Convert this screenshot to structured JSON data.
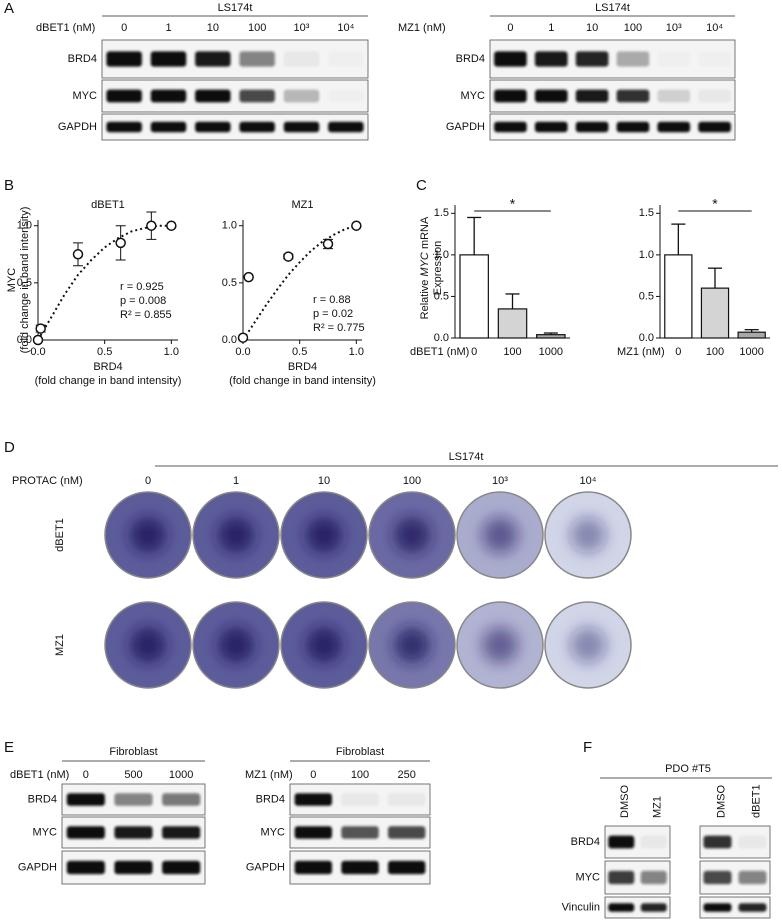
{
  "panel_labels": [
    "A",
    "B",
    "C",
    "D",
    "E",
    "F"
  ],
  "blots": [
    {
      "title": "LS174t",
      "conc_label": "dBET1 (nM)",
      "lanes": [
        "0",
        "1",
        "10",
        "100",
        "10³",
        "10⁴"
      ],
      "rows": [
        {
          "name": "BRD4",
          "bands": [
            1,
            1,
            0.95,
            0.5,
            0.05,
            0.02
          ]
        },
        {
          "name": "MYC",
          "bands": [
            1,
            1,
            1,
            0.75,
            0.25,
            0.02
          ]
        },
        {
          "name": "GAPDH",
          "bands": [
            1,
            1,
            1,
            1,
            1,
            1
          ]
        }
      ]
    },
    {
      "title": "LS174t",
      "conc_label": "MZ1 (nM)",
      "lanes": [
        "0",
        "1",
        "10",
        "100",
        "10³",
        "10⁴"
      ],
      "rows": [
        {
          "name": "BRD4",
          "bands": [
            1,
            0.95,
            0.9,
            0.3,
            0.02,
            0.02
          ]
        },
        {
          "name": "MYC",
          "bands": [
            1,
            1,
            0.95,
            0.85,
            0.15,
            0.05
          ]
        },
        {
          "name": "GAPDH",
          "bands": [
            1,
            1,
            1,
            1,
            1,
            1
          ]
        }
      ]
    },
    {
      "title": "Fibroblast",
      "conc_label": "dBET1 (nM)",
      "lanes": [
        "0",
        "500",
        "1000"
      ],
      "rows": [
        {
          "name": "BRD4",
          "bands": [
            1,
            0.5,
            0.55
          ]
        },
        {
          "name": "MYC",
          "bands": [
            1,
            0.95,
            0.95
          ]
        },
        {
          "name": "GAPDH",
          "bands": [
            1,
            1,
            1
          ]
        }
      ]
    },
    {
      "title": "Fibroblast",
      "conc_label": "MZ1 (nM)",
      "lanes": [
        "0",
        "100",
        "250"
      ],
      "rows": [
        {
          "name": "BRD4",
          "bands": [
            1,
            0.05,
            0.05
          ]
        },
        {
          "name": "MYC",
          "bands": [
            1,
            0.7,
            0.75
          ]
        },
        {
          "name": "GAPDH",
          "bands": [
            1,
            1,
            1
          ]
        }
      ]
    },
    {
      "title": "PDO #T5",
      "lanes": [
        "DMSO",
        "MZ1"
      ],
      "rows": [
        {
          "name": "BRD4",
          "bands": [
            1,
            0.05
          ]
        },
        {
          "name": "MYC",
          "bands": [
            0.8,
            0.5
          ]
        },
        {
          "name": "Vinculin",
          "bands": [
            1,
            0.9
          ]
        }
      ]
    },
    {
      "lanes": [
        "DMSO",
        "dBET1"
      ],
      "rows": [
        {
          "bands": [
            0.85,
            0.05
          ]
        },
        {
          "bands": [
            0.75,
            0.5
          ]
        },
        {
          "bands": [
            1,
            0.9
          ]
        }
      ]
    }
  ],
  "plates": {
    "title": "LS174t",
    "conc_label": "PROTAC (nM)",
    "lanes": [
      "0",
      "1",
      "10",
      "100",
      "10³",
      "10⁴"
    ],
    "rows": [
      {
        "name": "dBET1",
        "density": [
          1,
          1,
          1,
          0.9,
          0.4,
          0.1
        ]
      },
      {
        "name": "MZ1",
        "density": [
          1,
          1,
          1,
          0.8,
          0.35,
          0.1
        ]
      }
    ]
  },
  "chart_data": [
    {
      "type": "scatter",
      "title": "dBET1",
      "ylabel": [
        "MYC",
        "(fold change in band intensity)"
      ],
      "xlabel": [
        "BRD4",
        "(fold change in band intensity)"
      ],
      "x": [
        0,
        0.02,
        0.3,
        0.62,
        0.85,
        1.0
      ],
      "values": [
        0,
        0.1,
        0.75,
        0.85,
        1.0,
        1.0
      ],
      "errors": [
        0,
        0.03,
        0.1,
        0.15,
        0.12,
        0
      ],
      "fit": {
        "x": [
          0,
          0.1,
          0.2,
          0.3,
          0.4,
          0.5,
          0.6,
          0.7,
          0.8,
          0.9,
          1.0
        ],
        "y": [
          0,
          0.2,
          0.4,
          0.57,
          0.7,
          0.81,
          0.89,
          0.95,
          0.98,
          1.0,
          1.0
        ]
      },
      "annotations": [
        "r = 0.925",
        "p = 0.008",
        "R² = 0.855"
      ],
      "xlim": [
        0,
        1.05
      ],
      "ylim": [
        0,
        1.05
      ],
      "xticks": [
        {
          "value": 0,
          "label": "0.0"
        },
        {
          "value": 0.5,
          "label": "0.5"
        },
        {
          "value": 1,
          "label": "1.0"
        }
      ],
      "yticks": [
        {
          "value": 0,
          "label": "0.0"
        },
        {
          "value": 0.5,
          "label": "0.5"
        },
        {
          "value": 1,
          "label": "1.0"
        }
      ]
    },
    {
      "type": "scatter",
      "title": "MZ1",
      "xlabel": [
        "BRD4",
        "(fold change in band intensity)"
      ],
      "x": [
        0,
        0.05,
        0.4,
        0.75,
        1.0
      ],
      "values": [
        0.02,
        0.55,
        0.73,
        0.84,
        1.0
      ],
      "errors": [
        0,
        0,
        0.02,
        0.04,
        0
      ],
      "fit": {
        "x": [
          0,
          0.1,
          0.2,
          0.3,
          0.4,
          0.5,
          0.6,
          0.7,
          0.8,
          0.9,
          1.0
        ],
        "y": [
          0,
          0.15,
          0.3,
          0.44,
          0.57,
          0.68,
          0.78,
          0.86,
          0.92,
          0.97,
          1.0
        ]
      },
      "annotations": [
        "r = 0.88",
        "p = 0.02",
        "R² = 0.775"
      ],
      "xlim": [
        0,
        1.05
      ],
      "ylim": [
        0,
        1.05
      ],
      "xticks": [
        {
          "value": 0,
          "label": "0.0"
        },
        {
          "value": 0.5,
          "label": "0.5"
        },
        {
          "value": 1,
          "label": "1.0"
        }
      ],
      "yticks": [
        {
          "value": 0,
          "label": "0.0"
        },
        {
          "value": 0.5,
          "label": "0.5"
        },
        {
          "value": 1,
          "label": "1.0"
        }
      ]
    },
    {
      "type": "bar",
      "ylabel": {
        "pre": "Relative ",
        "em": "MYC",
        "post": " mRNA",
        "line2": "Expression"
      },
      "xlabel": "dBET1 (nM)",
      "categories": [
        "0",
        "100",
        "1000"
      ],
      "values": [
        1.0,
        0.35,
        0.04
      ],
      "errors": [
        0.45,
        0.18,
        0.02
      ],
      "colors": [
        "#ffffff",
        "#d4d4d4",
        "#a8a8a8"
      ],
      "significance": "*",
      "ylim": [
        0,
        1.6
      ],
      "yticks": [
        {
          "value": 0,
          "label": "0.0"
        },
        {
          "value": 0.5,
          "label": "0.5"
        },
        {
          "value": 1,
          "label": "1.0"
        },
        {
          "value": 1.5,
          "label": "1.5"
        }
      ]
    },
    {
      "type": "bar",
      "xlabel": "MZ1 (nM)",
      "categories": [
        "0",
        "100",
        "1000"
      ],
      "values": [
        1.0,
        0.6,
        0.07
      ],
      "errors": [
        0.37,
        0.24,
        0.03
      ],
      "colors": [
        "#ffffff",
        "#d4d4d4",
        "#a8a8a8"
      ],
      "significance": "*",
      "ylim": [
        0,
        1.6
      ],
      "yticks": [
        {
          "value": 0,
          "label": "0.0"
        },
        {
          "value": 0.5,
          "label": "0.5"
        },
        {
          "value": 1,
          "label": "1.0"
        },
        {
          "value": 1.5,
          "label": "1.5"
        }
      ]
    }
  ]
}
